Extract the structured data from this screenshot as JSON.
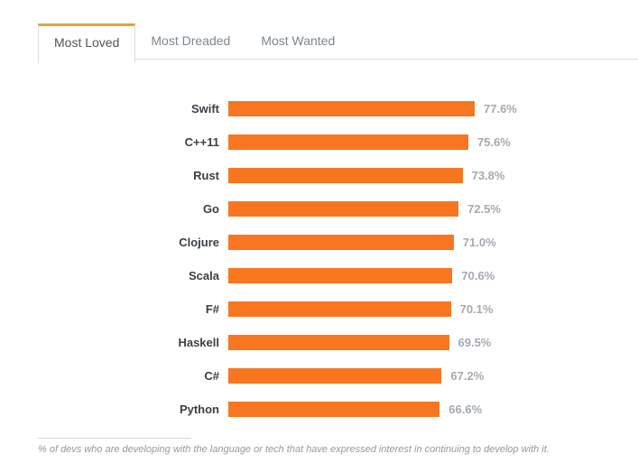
{
  "tabs": {
    "active_index": 0,
    "items": [
      {
        "label": "Most Loved"
      },
      {
        "label": "Most Dreaded"
      },
      {
        "label": "Most Wanted"
      }
    ]
  },
  "chart_data": {
    "type": "bar",
    "orientation": "horizontal",
    "title": "Most Loved",
    "categories": [
      "Swift",
      "C++11",
      "Rust",
      "Go",
      "Clojure",
      "Scala",
      "F#",
      "Haskell",
      "C#",
      "Python"
    ],
    "values": [
      77.6,
      75.6,
      73.8,
      72.5,
      71.0,
      70.6,
      70.1,
      69.5,
      67.2,
      66.6
    ],
    "value_labels": [
      "77.6%",
      "75.6%",
      "73.8%",
      "72.5%",
      "71.0%",
      "70.6%",
      "70.1%",
      "69.5%",
      "67.2%",
      "66.6%"
    ],
    "xlabel": "",
    "ylabel": "",
    "xlim": [
      0,
      80
    ],
    "grid": false,
    "legend": false,
    "bar_color": "#f7761f"
  },
  "footnote": "% of devs who are developing with the language or tech that have expressed interest in continuing to develop with it.",
  "colors": {
    "bar_orange": "#f7761f",
    "tab_active_accent": "#e2a33e",
    "label_text": "#3b4045",
    "value_text": "#a5aab0",
    "footnote_text": "#94999e"
  }
}
